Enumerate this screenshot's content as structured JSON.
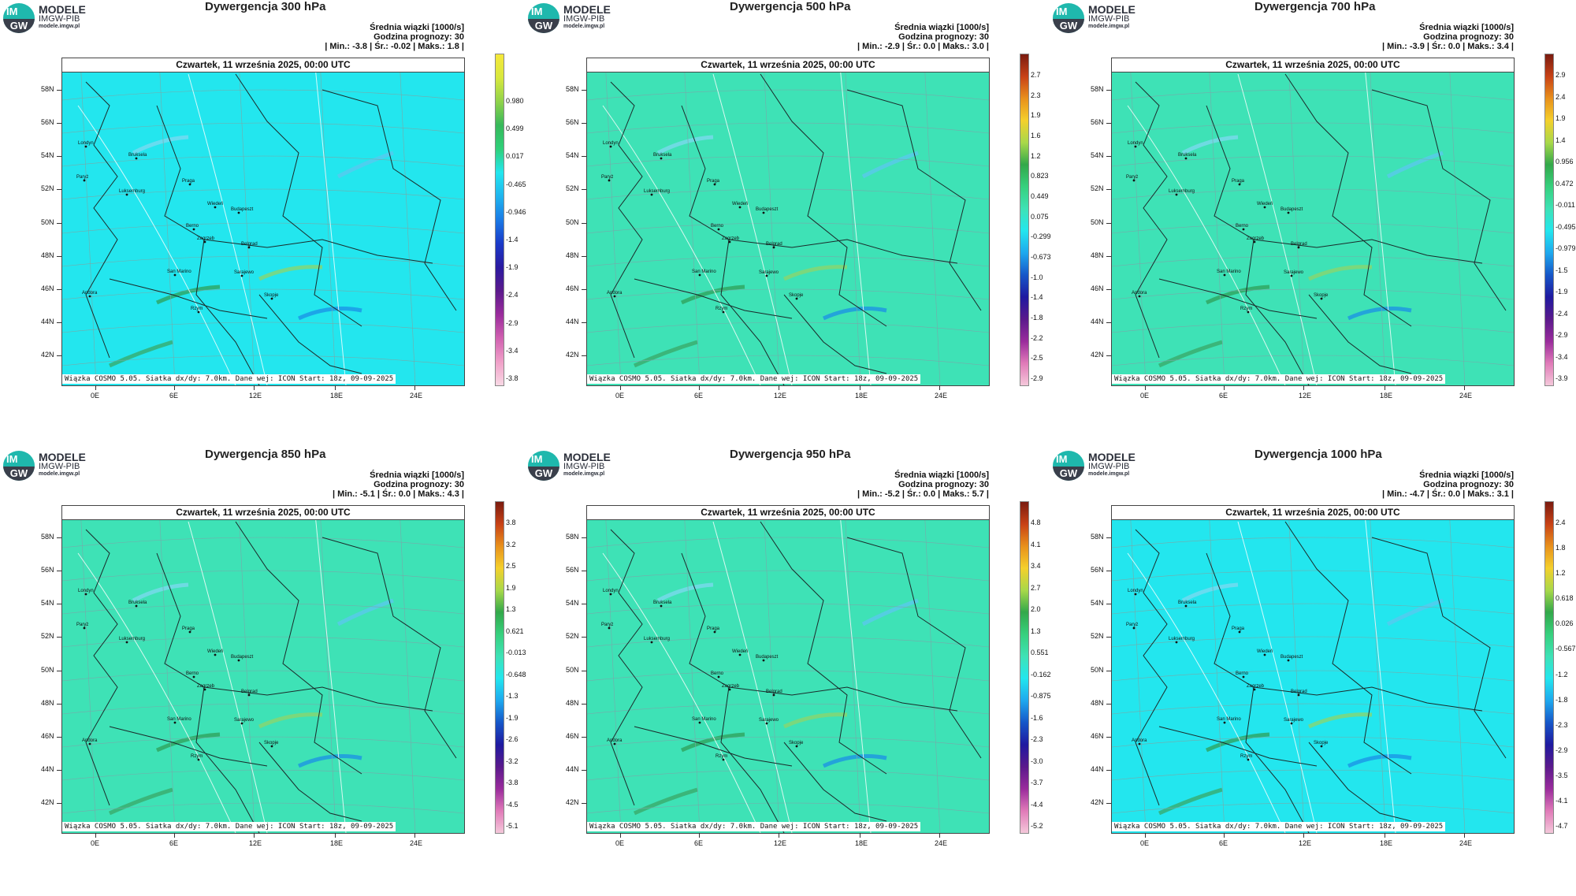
{
  "logo": {
    "im": "IM",
    "gw": "GW",
    "line1": "MODELE",
    "line2": "IMGW-PIB",
    "line3": "modele.imgw.pl"
  },
  "date_header": "Czwartek, 11 września 2025, 00:00 UTC",
  "stats_title": "Średnia wiązki [1000/s]",
  "stats_hour": "Godzina prognozy: 30",
  "footer": "Wiązka COSMO 5.05. Siatka dx/dy: 7.0km. Dane wej: ICON Start: 18z, 09-09-2025",
  "lat_labels": [
    "58N",
    "56N",
    "54N",
    "52N",
    "50N",
    "48N",
    "46N",
    "44N",
    "42N"
  ],
  "lon_labels": [
    "0E",
    "6E",
    "12E",
    "18E",
    "24E"
  ],
  "panels": [
    {
      "title": "Dywergencja 300 hPa",
      "stats_line": "| Min.:   -3.8 | Śr.:  -0.02 | Maks.:    1.8 |",
      "colorbar": [
        "0.980",
        "0.499",
        "0.017",
        "-0.465",
        "-0.946",
        "-1.4",
        "-1.9",
        "-2.4",
        "-2.9",
        "-3.4",
        "-3.8"
      ],
      "base_color": "#23e6ee"
    },
    {
      "title": "Dywergencja 500 hPa",
      "stats_line": "| Min.:   -2.9 | Śr.:    0.0 | Maks.:    3.0 |",
      "colorbar": [
        "2.7",
        "2.3",
        "1.9",
        "1.6",
        "1.2",
        "0.823",
        "0.449",
        "0.075",
        "-0.299",
        "-0.673",
        "-1.0",
        "-1.4",
        "-1.8",
        "-2.2",
        "-2.5",
        "-2.9"
      ],
      "base_color": "#3ee2b6"
    },
    {
      "title": "Dywergencja 700 hPa",
      "stats_line": "| Min.:   -3.9 | Śr.:    0.0 | Maks.:    3.4 |",
      "colorbar": [
        "2.9",
        "2.4",
        "1.9",
        "1.4",
        "0.956",
        "0.472",
        "-0.011",
        "-0.495",
        "-0.979",
        "-1.5",
        "-1.9",
        "-2.4",
        "-2.9",
        "-3.4",
        "-3.9"
      ],
      "base_color": "#3ee2b6"
    },
    {
      "title": "Dywergencja 850 hPa",
      "stats_line": "| Min.:   -5.1 | Śr.:    0.0 | Maks.:    4.3 |",
      "colorbar": [
        "3.8",
        "3.2",
        "2.5",
        "1.9",
        "1.3",
        "0.621",
        "-0.013",
        "-0.648",
        "-1.3",
        "-1.9",
        "-2.6",
        "-3.2",
        "-3.8",
        "-4.5",
        "-5.1"
      ],
      "base_color": "#3ee2b6"
    },
    {
      "title": "Dywergencja 950 hPa",
      "stats_line": "| Min.:   -5.2 | Śr.:    0.0 | Maks.:    5.7 |",
      "colorbar": [
        "4.8",
        "4.1",
        "3.4",
        "2.7",
        "2.0",
        "1.3",
        "0.551",
        "-0.162",
        "-0.875",
        "-1.6",
        "-2.3",
        "-3.0",
        "-3.7",
        "-4.4",
        "-5.2"
      ],
      "base_color": "#3ee2b6"
    },
    {
      "title": "Dywergencja 1000 hPa",
      "stats_line": "| Min.:   -4.7 | Śr.:    0.0 | Maks.:    3.1 |",
      "colorbar": [
        "2.4",
        "1.8",
        "1.2",
        "0.618",
        "0.026",
        "-0.567",
        "-1.2",
        "-1.8",
        "-2.3",
        "-2.9",
        "-3.5",
        "-4.1",
        "-4.7"
      ],
      "base_color": "#23e6ee"
    }
  ],
  "cities": [
    "Londyn",
    "Bruksela",
    "Paryż",
    "Luksemburg",
    "Praga",
    "Wiedeń",
    "Budapeszt",
    "Berno",
    "Zagrzeb",
    "Belgrad",
    "San Marino",
    "Sarajewo",
    "Andora",
    "Skopje",
    "Rzym"
  ]
}
